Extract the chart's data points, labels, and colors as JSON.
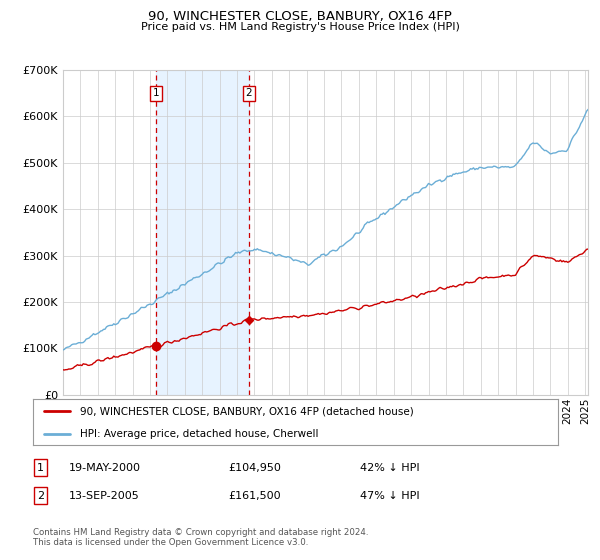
{
  "title_line1": "90, WINCHESTER CLOSE, BANBURY, OX16 4FP",
  "title_line2": "Price paid vs. HM Land Registry's House Price Index (HPI)",
  "legend_property": "90, WINCHESTER CLOSE, BANBURY, OX16 4FP (detached house)",
  "legend_hpi": "HPI: Average price, detached house, Cherwell",
  "property_color": "#cc0000",
  "hpi_color": "#6baed6",
  "purchase1_year": 2000,
  "purchase1_month": 5,
  "purchase1_price": 104950,
  "purchase2_year": 2005,
  "purchase2_month": 9,
  "purchase2_price": 161500,
  "ylim_max": 700000,
  "yticks": [
    0,
    100000,
    200000,
    300000,
    400000,
    500000,
    600000,
    700000
  ],
  "background_color": "#ffffff",
  "grid_color": "#cccccc",
  "shade_color": "#ddeeff"
}
